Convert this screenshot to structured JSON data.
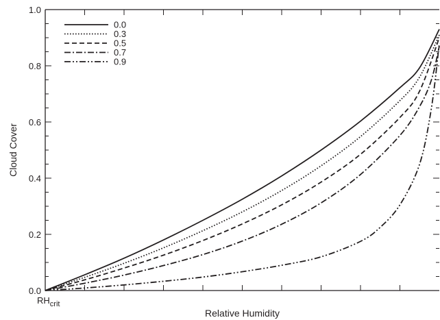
{
  "chart_data": {
    "type": "line",
    "xlabel": "Relative Humidity",
    "ylabel": "Cloud Cover",
    "x_tick_label": {
      "main": "RH",
      "sub": "crit"
    },
    "y_ticks": [
      "0.0",
      "0.2",
      "0.4",
      "0.6",
      "0.8",
      "1.0"
    ],
    "ylim": [
      0,
      1
    ],
    "xlim": [
      0,
      1
    ],
    "grid": false,
    "legend_position": "top-left",
    "series": [
      {
        "name": "0.0",
        "style": "solid",
        "x": [
          0,
          0.1,
          0.2,
          0.3,
          0.4,
          0.5,
          0.6,
          0.7,
          0.8,
          0.9,
          0.95,
          1.0
        ],
        "y": [
          0,
          0.056,
          0.115,
          0.18,
          0.25,
          0.325,
          0.408,
          0.5,
          0.603,
          0.722,
          0.793,
          0.93
        ]
      },
      {
        "name": "0.3",
        "style": "dotted",
        "x": [
          0,
          0.1,
          0.2,
          0.3,
          0.4,
          0.5,
          0.6,
          0.7,
          0.8,
          0.9,
          0.95,
          1.0
        ],
        "y": [
          0,
          0.047,
          0.097,
          0.152,
          0.213,
          0.28,
          0.356,
          0.444,
          0.548,
          0.676,
          0.76,
          0.91
        ]
      },
      {
        "name": "0.5",
        "style": "dashed",
        "x": [
          0,
          0.1,
          0.2,
          0.3,
          0.4,
          0.5,
          0.6,
          0.7,
          0.8,
          0.9,
          0.95,
          1.0
        ],
        "y": [
          0,
          0.038,
          0.08,
          0.126,
          0.178,
          0.237,
          0.305,
          0.386,
          0.485,
          0.616,
          0.71,
          0.9
        ]
      },
      {
        "name": "0.7",
        "style": "dashdot",
        "x": [
          0,
          0.1,
          0.2,
          0.3,
          0.4,
          0.5,
          0.6,
          0.7,
          0.8,
          0.9,
          0.95,
          0.98,
          1.0
        ],
        "y": [
          0,
          0.026,
          0.055,
          0.089,
          0.128,
          0.176,
          0.236,
          0.312,
          0.413,
          0.552,
          0.655,
          0.75,
          0.87
        ]
      },
      {
        "name": "0.9",
        "style": "dashdotdot",
        "x": [
          0,
          0.1,
          0.2,
          0.3,
          0.4,
          0.5,
          0.6,
          0.7,
          0.8,
          0.85,
          0.9,
          0.95,
          0.98,
          1.0
        ],
        "y": [
          0,
          0.009,
          0.02,
          0.033,
          0.048,
          0.067,
          0.09,
          0.12,
          0.175,
          0.225,
          0.305,
          0.45,
          0.65,
          0.88
        ]
      }
    ]
  }
}
